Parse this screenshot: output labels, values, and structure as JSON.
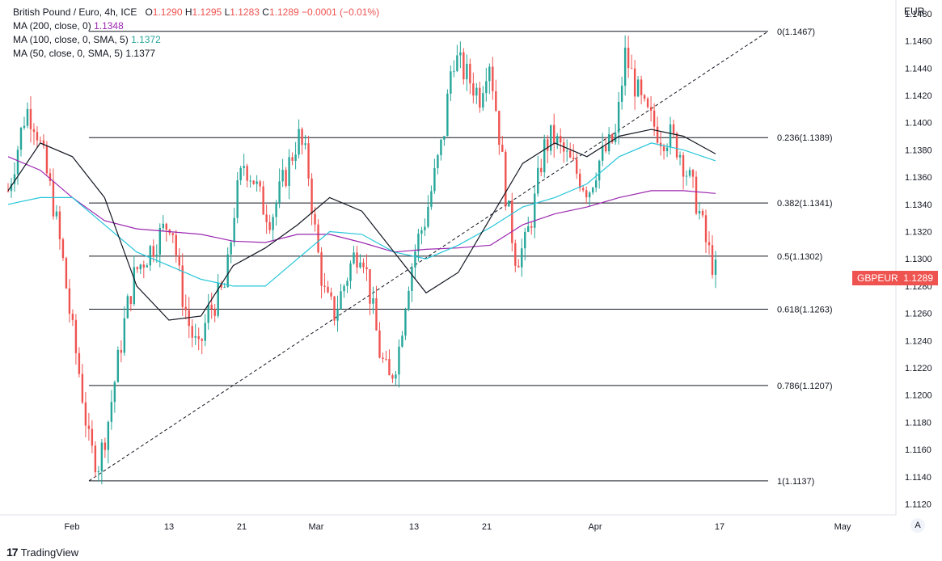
{
  "legend": {
    "symbol_line": "British Pound / Euro, 4h, ICE",
    "ohlc": {
      "o_label": "O",
      "o": "1.1290",
      "h_label": "H",
      "h": "1.1295",
      "l_label": "L",
      "l": "1.1283",
      "c_label": "C",
      "c": "1.1289",
      "change": "−0.0001 (−0.01%)"
    },
    "ma200": {
      "label": "MA (200, close, 0)",
      "value": "1.1348"
    },
    "ma100": {
      "label": "MA (100, close, 0, SMA, 5)",
      "value": "1.1372"
    },
    "ma50": {
      "label": "MA (50, close, 0, SMA, 5)",
      "value": "1.1377"
    }
  },
  "price_axis": {
    "unit": "EUR"
  },
  "last_price": {
    "symbol": "GBPEUR",
    "value": "1.1289"
  },
  "auto_button": "A",
  "brand": "TradingView",
  "colors": {
    "up": "#26a69a",
    "down": "#ef5350",
    "ma200": "#9c27b0",
    "ma100": "#26c6da",
    "ma50": "#131722",
    "fib": "#131722"
  },
  "chart_data": {
    "type": "candlestick",
    "y_ticks": [
      "1.1480",
      "1.1460",
      "1.1440",
      "1.1420",
      "1.1400",
      "1.1380",
      "1.1360",
      "1.1340",
      "1.1320",
      "1.1300",
      "1.1280",
      "1.1260",
      "1.1240",
      "1.1220",
      "1.1200",
      "1.1180",
      "1.1160",
      "1.1140",
      "1.1120"
    ],
    "ylim": [
      1.1112,
      1.149
    ],
    "x_ticks": [
      "Feb",
      "13",
      "21",
      "Mar",
      "13",
      "21",
      "Apr",
      "17",
      "May"
    ],
    "fib_levels": [
      {
        "label": "0(1.1467)",
        "price": 1.1467
      },
      {
        "label": "0.236(1.1389)",
        "price": 1.1389
      },
      {
        "label": "0.382(1.1341)",
        "price": 1.1341
      },
      {
        "label": "0.5(1.1302)",
        "price": 1.1302
      },
      {
        "label": "0.618(1.1263)",
        "price": 1.1263
      },
      {
        "label": "0.786(1.1207)",
        "price": 1.1207
      },
      {
        "label": "1(1.1137)",
        "price": 1.1137
      }
    ],
    "series": [
      {
        "name": "GBPEUR",
        "close_path": [
          1.135,
          1.138,
          1.141,
          1.14,
          1.137,
          1.134,
          1.13,
          1.125,
          1.121,
          1.116,
          1.115,
          1.118,
          1.122,
          1.126,
          1.129,
          1.13,
          1.131,
          1.132,
          1.133,
          1.128,
          1.125,
          1.123,
          1.126,
          1.127,
          1.128,
          1.134,
          1.137,
          1.136,
          1.134,
          1.133,
          1.135,
          1.137,
          1.139,
          1.137,
          1.131,
          1.127,
          1.126,
          1.128,
          1.13,
          1.131,
          1.127,
          1.123,
          1.121,
          1.123,
          1.128,
          1.131,
          1.133,
          1.136,
          1.139,
          1.145,
          1.144,
          1.143,
          1.142,
          1.145,
          1.14,
          1.134,
          1.13,
          1.131,
          1.134,
          1.138,
          1.139,
          1.138,
          1.137,
          1.136,
          1.135,
          1.137,
          1.138,
          1.139,
          1.145,
          1.143,
          1.141,
          1.14,
          1.139,
          1.139,
          1.138,
          1.136,
          1.134,
          1.131,
          1.129
        ]
      },
      {
        "name": "MA (200, close, 0)",
        "path": [
          1.1375,
          1.1365,
          1.1345,
          1.1328,
          1.1322,
          1.132,
          1.1318,
          1.1313,
          1.1312,
          1.1318,
          1.1318,
          1.1312,
          1.1305,
          1.1307,
          1.1308,
          1.131,
          1.1325,
          1.1333,
          1.1338,
          1.1345,
          1.135,
          1.135,
          1.1348
        ]
      },
      {
        "name": "MA (100, close, 0, SMA, 5)",
        "path": [
          1.134,
          1.1345,
          1.1345,
          1.1325,
          1.1305,
          1.1295,
          1.1285,
          1.128,
          1.128,
          1.13,
          1.132,
          1.1318,
          1.1305,
          1.13,
          1.131,
          1.1323,
          1.1338,
          1.1345,
          1.1355,
          1.1375,
          1.1385,
          1.138,
          1.1372
        ]
      },
      {
        "name": "MA (50, close, 0, SMA, 5)",
        "path": [
          1.135,
          1.1385,
          1.1375,
          1.1345,
          1.128,
          1.1255,
          1.1258,
          1.1295,
          1.1308,
          1.1325,
          1.1345,
          1.1335,
          1.1305,
          1.1275,
          1.129,
          1.133,
          1.137,
          1.1385,
          1.1375,
          1.139,
          1.1395,
          1.139,
          1.1377
        ]
      }
    ]
  }
}
